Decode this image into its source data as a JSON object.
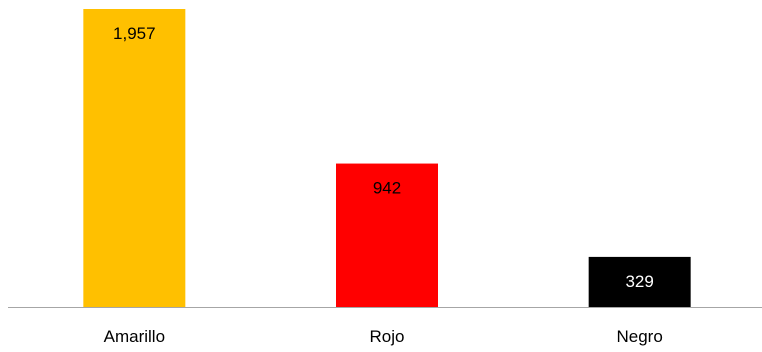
{
  "chart_data": {
    "type": "bar",
    "categories": [
      "Amarillo",
      "Rojo",
      "Negro"
    ],
    "values": [
      1957,
      942,
      329
    ],
    "data_labels": [
      "1,957",
      "942",
      "329"
    ],
    "colors": [
      "#FFC000",
      "#FF0000",
      "#000000"
    ],
    "label_colors": [
      "#000000",
      "#000000",
      "#FFFFFF"
    ],
    "axis_color": "#A6A6A6",
    "ylim": [
      0,
      1957
    ],
    "grid": false,
    "legend": "none",
    "title": "",
    "xlabel": "",
    "ylabel": ""
  }
}
